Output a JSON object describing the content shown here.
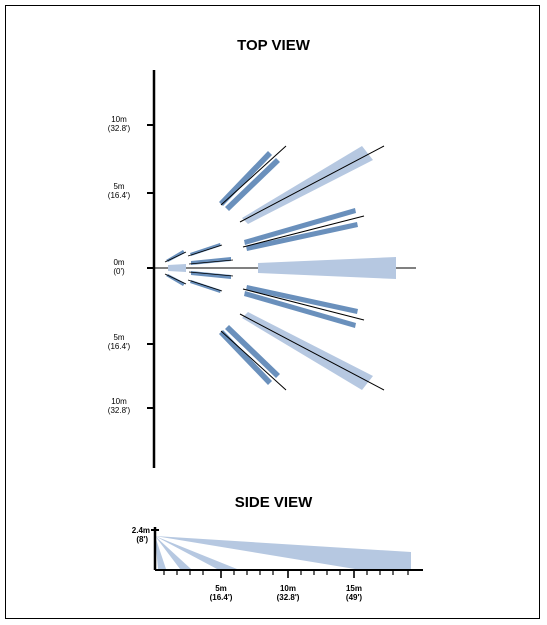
{
  "top_view": {
    "title": "TOP VIEW",
    "axis_labels": [
      {
        "main": "10m",
        "sub": "(32.8')"
      },
      {
        "main": "5m",
        "sub": "(16.4')"
      },
      {
        "main": "0m",
        "sub": "(0')"
      },
      {
        "main": "5m",
        "sub": "(16.4')"
      },
      {
        "main": "10m",
        "sub": "(32.8')"
      }
    ]
  },
  "side_view": {
    "title": "SIDE VIEW",
    "height_label": {
      "main": "2.4m",
      "sub": "(8')"
    },
    "distance_labels": [
      {
        "main": "5m",
        "sub": "(16.4')"
      },
      {
        "main": "10m",
        "sub": "(32.8')"
      },
      {
        "main": "15m",
        "sub": "(49')"
      }
    ]
  },
  "colors": {
    "zone_dark": "#6a90bc",
    "zone_light": "#b6c8e1",
    "line": "#000000"
  }
}
